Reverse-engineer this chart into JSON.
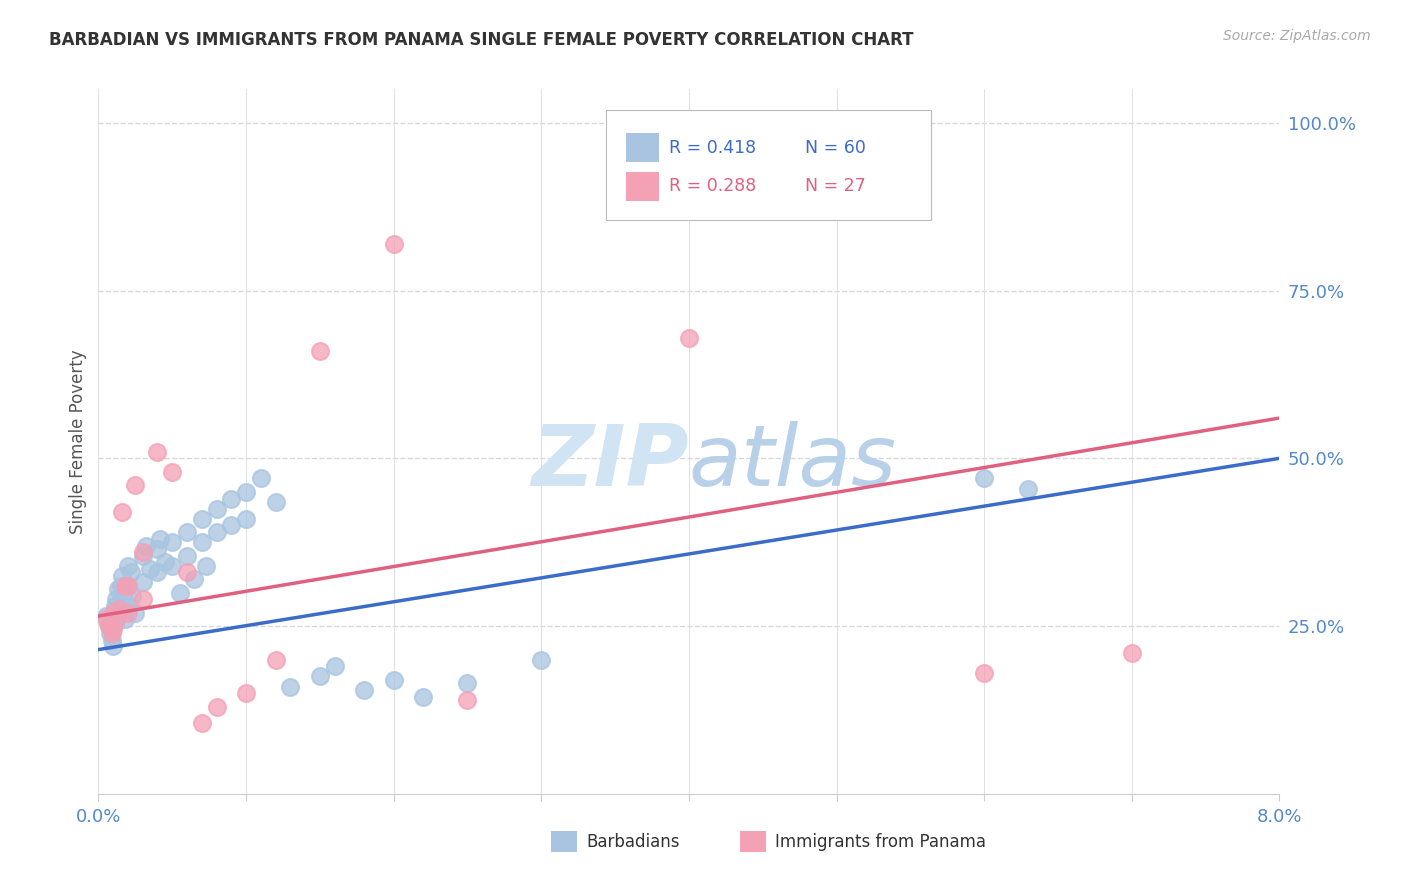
{
  "title": "BARBADIAN VS IMMIGRANTS FROM PANAMA SINGLE FEMALE POVERTY CORRELATION CHART",
  "source": "Source: ZipAtlas.com",
  "ylabel": "Single Female Poverty",
  "xlim": [
    0.0,
    0.08
  ],
  "ylim": [
    0.0,
    1.05
  ],
  "barbadian_color": "#a8c4e0",
  "panama_color": "#f4a0b5",
  "trendline_blue": "#3b6cc7",
  "trendline_pink": "#e06080",
  "right_axis_color": "#5588cc",
  "watermark_color": "#d0e4f4",
  "title_color": "#333333",
  "r_barb": 0.418,
  "n_barb": 60,
  "r_pan": 0.288,
  "n_pan": 27,
  "barb_x": [
    0.0005,
    0.0007,
    0.0008,
    0.0009,
    0.001,
    0.001,
    0.001,
    0.0011,
    0.0011,
    0.0012,
    0.0012,
    0.0013,
    0.0013,
    0.0014,
    0.0015,
    0.0015,
    0.0016,
    0.0017,
    0.0018,
    0.002,
    0.002,
    0.002,
    0.0022,
    0.0023,
    0.0025,
    0.003,
    0.003,
    0.0032,
    0.0035,
    0.004,
    0.004,
    0.0042,
    0.0045,
    0.005,
    0.005,
    0.0055,
    0.006,
    0.006,
    0.0065,
    0.007,
    0.007,
    0.0073,
    0.008,
    0.008,
    0.009,
    0.009,
    0.01,
    0.01,
    0.011,
    0.012,
    0.013,
    0.015,
    0.016,
    0.018,
    0.02,
    0.022,
    0.025,
    0.03,
    0.06,
    0.063
  ],
  "barb_y": [
    0.265,
    0.25,
    0.24,
    0.23,
    0.27,
    0.25,
    0.22,
    0.28,
    0.255,
    0.29,
    0.265,
    0.305,
    0.27,
    0.285,
    0.31,
    0.275,
    0.325,
    0.29,
    0.26,
    0.34,
    0.31,
    0.28,
    0.33,
    0.295,
    0.27,
    0.355,
    0.315,
    0.37,
    0.335,
    0.365,
    0.33,
    0.38,
    0.345,
    0.375,
    0.34,
    0.3,
    0.39,
    0.355,
    0.32,
    0.41,
    0.375,
    0.34,
    0.425,
    0.39,
    0.44,
    0.4,
    0.45,
    0.41,
    0.47,
    0.435,
    0.16,
    0.175,
    0.19,
    0.155,
    0.17,
    0.145,
    0.165,
    0.2,
    0.47,
    0.455
  ],
  "pan_x": [
    0.0005,
    0.0007,
    0.0009,
    0.001,
    0.001,
    0.0012,
    0.0014,
    0.0016,
    0.0018,
    0.002,
    0.002,
    0.0025,
    0.003,
    0.003,
    0.004,
    0.005,
    0.006,
    0.007,
    0.008,
    0.01,
    0.012,
    0.015,
    0.02,
    0.025,
    0.04,
    0.06,
    0.07
  ],
  "pan_y": [
    0.26,
    0.25,
    0.24,
    0.27,
    0.245,
    0.26,
    0.275,
    0.42,
    0.31,
    0.31,
    0.27,
    0.46,
    0.36,
    0.29,
    0.51,
    0.48,
    0.33,
    0.105,
    0.13,
    0.15,
    0.2,
    0.66,
    0.82,
    0.14,
    0.68,
    0.18,
    0.21
  ],
  "trend_blue_y0": 0.215,
  "trend_blue_y1": 0.5,
  "trend_pink_y0": 0.265,
  "trend_pink_y1": 0.56
}
